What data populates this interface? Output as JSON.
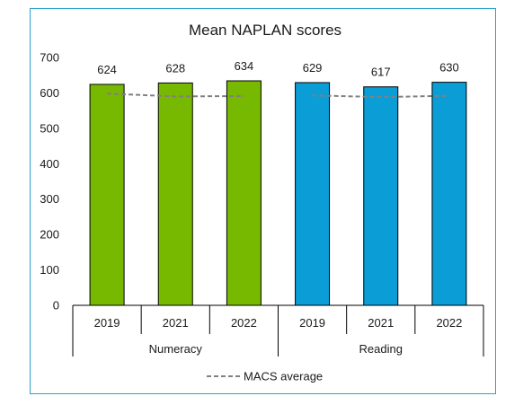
{
  "chart_data": {
    "type": "bar",
    "title": "Mean NAPLAN scores",
    "groups": [
      "Numeracy",
      "Reading"
    ],
    "categories": [
      "2019",
      "2021",
      "2022",
      "2019",
      "2021",
      "2022"
    ],
    "category_group": [
      "Numeracy",
      "Numeracy",
      "Numeracy",
      "Reading",
      "Reading",
      "Reading"
    ],
    "values": [
      624,
      628,
      634,
      629,
      617,
      630
    ],
    "bar_colors": [
      "#77b900",
      "#77b900",
      "#77b900",
      "#0a9dd6",
      "#0a9dd6",
      "#0a9dd6"
    ],
    "data_labels": [
      "624",
      "628",
      "634",
      "629",
      "617",
      "630"
    ],
    "series": [
      {
        "name": "MACS average",
        "type": "line",
        "style": "dashed",
        "color": "#808080",
        "values": [
          598,
          590,
          591,
          593,
          588,
          592
        ]
      }
    ],
    "ylim": [
      0,
      700
    ],
    "yticks": [
      "0",
      "100",
      "200",
      "300",
      "400",
      "500",
      "600",
      "700"
    ],
    "xlabel": "",
    "ylabel": "",
    "grid": false,
    "legend": {
      "position": "bottom",
      "entries": [
        "MACS average"
      ]
    }
  }
}
